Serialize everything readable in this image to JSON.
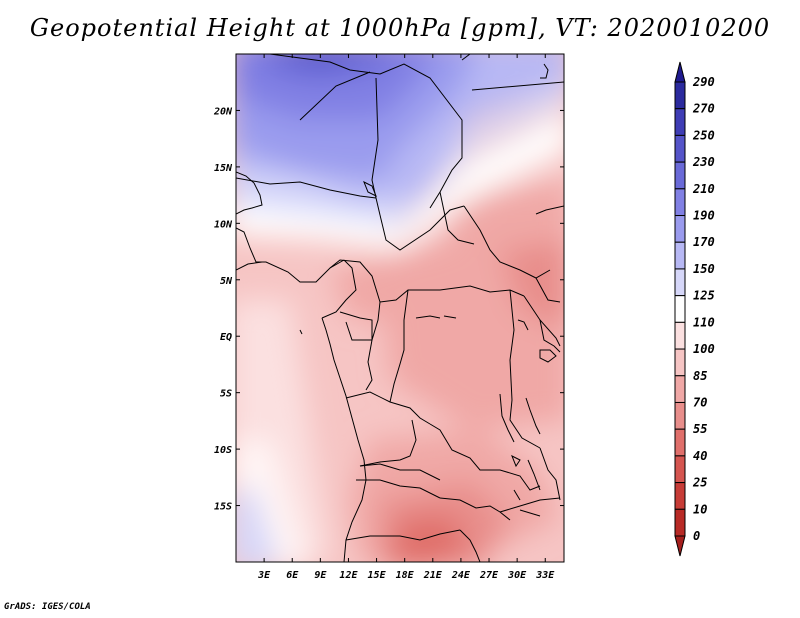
{
  "title": "Geopotential Height at 1000hPa [gpm], VT: 2020010200",
  "footer": "GrADS: IGES/COLA",
  "chart_data": {
    "type": "heatmap",
    "title": "Geopotential Height at 1000hPa [gpm], VT: 2020010200",
    "variable": "Geopotential Height at 1000hPa",
    "units": "gpm",
    "valid_time": "2020010200",
    "lon_range": [
      0,
      35
    ],
    "lat_range": [
      -20,
      25
    ],
    "lon_ticks": [
      "3E",
      "6E",
      "9E",
      "12E",
      "15E",
      "18E",
      "21E",
      "24E",
      "27E",
      "30E",
      "33E"
    ],
    "lat_ticks": [
      "20N",
      "15N",
      "10N",
      "5N",
      "EQ",
      "5S",
      "10S",
      "15S"
    ],
    "colorbar": {
      "labels": [
        "290",
        "270",
        "250",
        "230",
        "210",
        "190",
        "170",
        "150",
        "125",
        "110",
        "100",
        "85",
        "70",
        "55",
        "40",
        "25",
        "10",
        "0"
      ],
      "colors": [
        "#1f1a8f",
        "#2b2a9e",
        "#3f3db5",
        "#5554c9",
        "#6a6ad8",
        "#8180e4",
        "#9a9bee",
        "#b7b8f4",
        "#d6d7f9",
        "#ffffff",
        "#fbe0e0",
        "#f6c5c4",
        "#f0a8a6",
        "#e88e8b",
        "#e06f6b",
        "#d55550",
        "#c73c37",
        "#b82a26",
        "#a61f1d"
      ]
    }
  }
}
